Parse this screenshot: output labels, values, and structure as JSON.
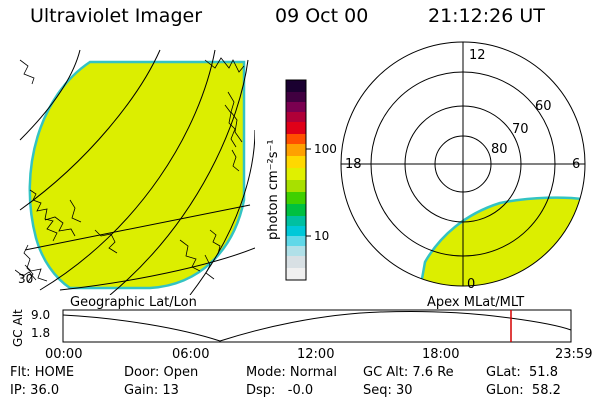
{
  "header": {
    "title": "Ultraviolet Imager",
    "date": "09 Oct 00",
    "time": "21:12:26 UT"
  },
  "colorbar": {
    "label": "photon cm⁻²s⁻¹",
    "ticks": [
      "100",
      "10"
    ]
  },
  "polar": {
    "mlt_labels": [
      "12",
      "18",
      "6",
      "0"
    ],
    "lat_labels": [
      "60",
      "70",
      "80"
    ]
  },
  "panel_labels": {
    "left": "Geographic Lat/Lon",
    "right": "Apex MLat/MLT"
  },
  "lower_left_mark": "30",
  "altitude_plot": {
    "ylabel": "GC Alt",
    "yticks": [
      "9.0",
      "1.8"
    ],
    "xticks": [
      "00:00",
      "06:00",
      "12:00",
      "18:00",
      "23:59"
    ]
  },
  "status": {
    "flt": "Flt: HOME",
    "ip": "IP: 36.0",
    "door": "Door: Open",
    "gain": "Gain: 13",
    "mode": "Mode: Normal",
    "dsp": "Dsp:   -0.0",
    "gcalt": "GC Alt: 7.6 Re",
    "seq": "Seq: 30",
    "glat": "GLat:  51.8",
    "glon": "GLon:  58.2"
  },
  "colors": {
    "fill": "#dcee00",
    "edge": "#33c3c3",
    "marker": "#d40000"
  }
}
